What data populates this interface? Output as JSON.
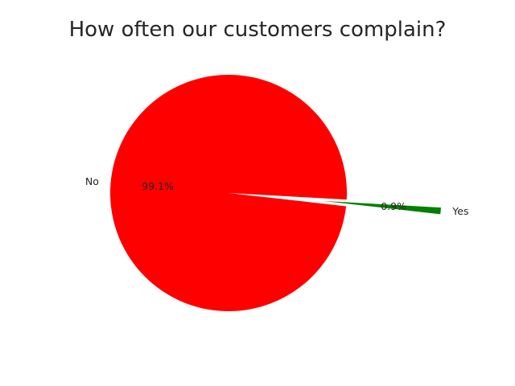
{
  "chart_data": {
    "type": "pie",
    "title": "How often our customers complain?",
    "slices": [
      {
        "label": "No",
        "value": 99.1,
        "pct_label": "99.1%",
        "color": "#ff0000",
        "explode": false
      },
      {
        "label": "Yes",
        "value": 0.9,
        "pct_label": "0.9%",
        "color": "#008000",
        "explode": true
      }
    ],
    "start_angle_deg": -3.2,
    "direction": "counterclockwise"
  }
}
